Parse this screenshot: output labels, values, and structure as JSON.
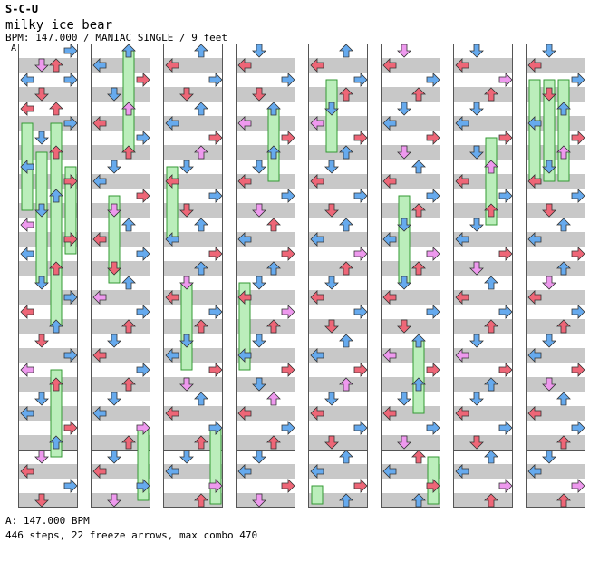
{
  "song": {
    "artist": "S-C-U",
    "title": "milky ice bear",
    "meta": "BPM: 147.000 / MANIAC SINGLE / 9 feet",
    "bpm_marker": "A",
    "bpm_footer": "A: 147.000 BPM",
    "stats": "446 steps, 22 freeze arrows, max combo 470"
  },
  "colors": {
    "quarter": "#66aaee",
    "eighth": "#ee6677",
    "sixteenth": "#ee99ee",
    "freeze": "#bbeebb",
    "band": "#c8c8c8"
  },
  "step_rows": [
    [
      0,
      3,
      0
    ],
    [
      1,
      1,
      2
    ],
    [
      1,
      2,
      1
    ],
    [
      2,
      0,
      0
    ],
    [
      2,
      3,
      0
    ],
    [
      3,
      1,
      1
    ],
    [
      4,
      0,
      1
    ],
    [
      4,
      2,
      1
    ],
    [
      5,
      3,
      0
    ],
    [
      6,
      1,
      0
    ],
    [
      7,
      2,
      1
    ],
    [
      8,
      0,
      0
    ],
    [
      9,
      3,
      1
    ],
    [
      10,
      2,
      0
    ],
    [
      11,
      1,
      0
    ],
    [
      12,
      0,
      2
    ],
    [
      13,
      3,
      1
    ],
    [
      14,
      0,
      0
    ],
    [
      15,
      2,
      1
    ],
    [
      16,
      1,
      0
    ],
    [
      17,
      3,
      0
    ],
    [
      18,
      0,
      1
    ],
    [
      19,
      2,
      0
    ],
    [
      20,
      1,
      1
    ],
    [
      21,
      3,
      0
    ],
    [
      22,
      0,
      2
    ],
    [
      23,
      2,
      1
    ],
    [
      24,
      1,
      0
    ],
    [
      25,
      0,
      0
    ],
    [
      26,
      3,
      1
    ],
    [
      27,
      2,
      0
    ],
    [
      28,
      1,
      2
    ],
    [
      29,
      0,
      1
    ],
    [
      30,
      3,
      0
    ],
    [
      31,
      1,
      1
    ],
    [
      32,
      2,
      0
    ],
    [
      33,
      0,
      0
    ],
    [
      34,
      3,
      1
    ],
    [
      35,
      1,
      0
    ],
    [
      36,
      2,
      2
    ],
    [
      37,
      0,
      1
    ],
    [
      38,
      3,
      0
    ],
    [
      39,
      2,
      1
    ],
    [
      40,
      1,
      0
    ],
    [
      41,
      0,
      0
    ],
    [
      42,
      3,
      1
    ],
    [
      43,
      1,
      2
    ],
    [
      44,
      2,
      0
    ],
    [
      45,
      0,
      1
    ],
    [
      46,
      3,
      0
    ],
    [
      47,
      1,
      1
    ],
    [
      48,
      2,
      0
    ],
    [
      49,
      0,
      2
    ],
    [
      50,
      3,
      0
    ],
    [
      51,
      2,
      1
    ],
    [
      52,
      1,
      0
    ],
    [
      53,
      0,
      1
    ],
    [
      54,
      3,
      0
    ],
    [
      55,
      2,
      1
    ],
    [
      56,
      1,
      0
    ],
    [
      57,
      0,
      0
    ],
    [
      58,
      3,
      2
    ],
    [
      59,
      2,
      1
    ],
    [
      60,
      1,
      0
    ],
    [
      61,
      0,
      1
    ],
    [
      62,
      3,
      0
    ],
    [
      63,
      1,
      2
    ],
    [
      64,
      2,
      0
    ],
    [
      65,
      0,
      1
    ],
    [
      66,
      3,
      0
    ],
    [
      67,
      1,
      1
    ],
    [
      68,
      2,
      0
    ],
    [
      69,
      0,
      0
    ],
    [
      70,
      3,
      1
    ],
    [
      71,
      2,
      2
    ],
    [
      72,
      1,
      0
    ],
    [
      73,
      0,
      1
    ],
    [
      74,
      3,
      0
    ],
    [
      75,
      1,
      1
    ],
    [
      76,
      2,
      0
    ],
    [
      77,
      0,
      0
    ],
    [
      78,
      3,
      1
    ],
    [
      79,
      2,
      0
    ],
    [
      80,
      1,
      2
    ],
    [
      81,
      0,
      1
    ],
    [
      82,
      3,
      0
    ],
    [
      83,
      2,
      1
    ],
    [
      84,
      1,
      0
    ],
    [
      85,
      0,
      0
    ],
    [
      86,
      3,
      1
    ],
    [
      87,
      1,
      2
    ],
    [
      88,
      2,
      0
    ],
    [
      89,
      0,
      1
    ],
    [
      90,
      3,
      0
    ],
    [
      91,
      2,
      1
    ],
    [
      92,
      1,
      0
    ],
    [
      93,
      0,
      0
    ],
    [
      94,
      3,
      2
    ],
    [
      95,
      2,
      1
    ],
    [
      96,
      1,
      0
    ],
    [
      97,
      0,
      1
    ],
    [
      98,
      3,
      0
    ],
    [
      99,
      1,
      1
    ],
    [
      100,
      2,
      0
    ],
    [
      101,
      0,
      2
    ],
    [
      102,
      3,
      1
    ],
    [
      103,
      2,
      0
    ],
    [
      104,
      1,
      0
    ],
    [
      105,
      0,
      1
    ],
    [
      106,
      3,
      0
    ],
    [
      107,
      1,
      2
    ],
    [
      108,
      2,
      1
    ],
    [
      109,
      0,
      0
    ],
    [
      110,
      3,
      1
    ],
    [
      111,
      2,
      0
    ],
    [
      112,
      1,
      0
    ],
    [
      113,
      0,
      1
    ],
    [
      114,
      3,
      2
    ],
    [
      115,
      2,
      1
    ],
    [
      116,
      1,
      0
    ],
    [
      117,
      0,
      0
    ],
    [
      118,
      3,
      1
    ],
    [
      119,
      1,
      0
    ],
    [
      120,
      2,
      2
    ],
    [
      121,
      0,
      1
    ],
    [
      122,
      3,
      0
    ],
    [
      123,
      2,
      1
    ],
    [
      124,
      1,
      0
    ],
    [
      125,
      0,
      0
    ],
    [
      126,
      3,
      1
    ],
    [
      127,
      1,
      2
    ],
    [
      128,
      2,
      0
    ],
    [
      129,
      0,
      1
    ],
    [
      130,
      3,
      0
    ],
    [
      131,
      2,
      1
    ],
    [
      132,
      1,
      0
    ],
    [
      133,
      0,
      2
    ],
    [
      134,
      3,
      1
    ],
    [
      135,
      2,
      0
    ],
    [
      136,
      1,
      0
    ],
    [
      137,
      0,
      1
    ],
    [
      138,
      3,
      0
    ],
    [
      139,
      1,
      1
    ],
    [
      140,
      2,
      0
    ],
    [
      141,
      0,
      0
    ],
    [
      142,
      3,
      2
    ],
    [
      143,
      2,
      1
    ],
    [
      144,
      1,
      0
    ],
    [
      145,
      0,
      1
    ],
    [
      146,
      3,
      0
    ],
    [
      147,
      1,
      1
    ],
    [
      148,
      2,
      0
    ],
    [
      149,
      0,
      0
    ],
    [
      150,
      3,
      1
    ],
    [
      151,
      2,
      2
    ],
    [
      152,
      1,
      0
    ],
    [
      153,
      0,
      1
    ],
    [
      154,
      3,
      0
    ],
    [
      155,
      1,
      1
    ],
    [
      156,
      2,
      0
    ],
    [
      157,
      0,
      0
    ],
    [
      158,
      3,
      1
    ],
    [
      159,
      2,
      0
    ],
    [
      160,
      1,
      2
    ],
    [
      161,
      0,
      1
    ],
    [
      162,
      3,
      0
    ],
    [
      163,
      2,
      1
    ],
    [
      164,
      1,
      0
    ],
    [
      165,
      0,
      0
    ],
    [
      166,
      3,
      1
    ],
    [
      167,
      1,
      2
    ],
    [
      168,
      2,
      0
    ],
    [
      169,
      0,
      1
    ],
    [
      170,
      3,
      0
    ],
    [
      171,
      2,
      1
    ],
    [
      172,
      1,
      0
    ],
    [
      173,
      0,
      0
    ],
    [
      174,
      3,
      2
    ],
    [
      175,
      2,
      1
    ],
    [
      176,
      1,
      0
    ],
    [
      177,
      0,
      1
    ],
    [
      178,
      3,
      0
    ],
    [
      179,
      1,
      1
    ],
    [
      180,
      2,
      0
    ],
    [
      181,
      0,
      2
    ],
    [
      182,
      3,
      1
    ],
    [
      183,
      2,
      0
    ],
    [
      184,
      1,
      0
    ],
    [
      185,
      0,
      1
    ],
    [
      186,
      3,
      0
    ],
    [
      187,
      1,
      2
    ],
    [
      188,
      2,
      1
    ],
    [
      189,
      0,
      0
    ],
    [
      190,
      3,
      1
    ],
    [
      191,
      2,
      0
    ],
    [
      192,
      1,
      0
    ],
    [
      193,
      0,
      1
    ],
    [
      194,
      3,
      2
    ],
    [
      195,
      2,
      1
    ],
    [
      196,
      1,
      0
    ],
    [
      197,
      0,
      0
    ],
    [
      198,
      3,
      1
    ],
    [
      199,
      1,
      0
    ],
    [
      200,
      2,
      2
    ],
    [
      201,
      0,
      1
    ],
    [
      202,
      3,
      0
    ],
    [
      203,
      2,
      1
    ],
    [
      204,
      1,
      0
    ],
    [
      205,
      0,
      0
    ],
    [
      206,
      3,
      1
    ],
    [
      207,
      1,
      2
    ],
    [
      208,
      2,
      0
    ],
    [
      209,
      0,
      1
    ],
    [
      210,
      3,
      0
    ],
    [
      211,
      2,
      1
    ],
    [
      212,
      1,
      0
    ],
    [
      213,
      0,
      2
    ],
    [
      214,
      3,
      1
    ],
    [
      215,
      2,
      0
    ],
    [
      216,
      1,
      0
    ],
    [
      217,
      0,
      1
    ],
    [
      218,
      3,
      0
    ],
    [
      219,
      1,
      1
    ],
    [
      220,
      2,
      0
    ],
    [
      221,
      0,
      0
    ],
    [
      222,
      3,
      2
    ],
    [
      223,
      2,
      1
    ],
    [
      224,
      1,
      0
    ],
    [
      225,
      0,
      1
    ],
    [
      226,
      3,
      0
    ],
    [
      227,
      1,
      1
    ],
    [
      228,
      2,
      0
    ],
    [
      229,
      0,
      0
    ],
    [
      230,
      3,
      1
    ],
    [
      231,
      2,
      2
    ],
    [
      232,
      1,
      0
    ],
    [
      233,
      0,
      1
    ],
    [
      234,
      3,
      0
    ],
    [
      235,
      1,
      1
    ],
    [
      236,
      2,
      0
    ],
    [
      237,
      0,
      0
    ],
    [
      238,
      3,
      1
    ],
    [
      239,
      2,
      0
    ],
    [
      240,
      1,
      2
    ],
    [
      241,
      0,
      1
    ],
    [
      242,
      3,
      0
    ],
    [
      243,
      2,
      1
    ],
    [
      244,
      1,
      0
    ],
    [
      245,
      0,
      0
    ],
    [
      246,
      3,
      1
    ],
    [
      247,
      1,
      2
    ],
    [
      248,
      2,
      0
    ],
    [
      249,
      0,
      1
    ],
    [
      250,
      3,
      0
    ],
    [
      251,
      2,
      1
    ],
    [
      252,
      1,
      0
    ],
    [
      253,
      0,
      0
    ],
    [
      254,
      3,
      2
    ],
    [
      255,
      2,
      1
    ]
  ],
  "freezes": [
    [
      5,
      2,
      28
    ],
    [
      7,
      1,
      18
    ],
    [
      5,
      0,
      12
    ],
    [
      8,
      3,
      12
    ],
    [
      22,
      2,
      12
    ],
    [
      32,
      2,
      14
    ],
    [
      42,
      1,
      12
    ],
    [
      58,
      3,
      10
    ],
    [
      72,
      0,
      10
    ],
    [
      80,
      1,
      12
    ],
    [
      90,
      3,
      12
    ],
    [
      100,
      2,
      10
    ],
    [
      112,
      0,
      12
    ],
    [
      130,
      1,
      10
    ],
    [
      158,
      0,
      12
    ],
    [
      170,
      1,
      12
    ],
    [
      180,
      2,
      10
    ],
    [
      198,
      2,
      12
    ],
    [
      226,
      2,
      14
    ],
    [
      226,
      1,
      14
    ],
    [
      226,
      0,
      14
    ],
    [
      188,
      3,
      10
    ]
  ]
}
